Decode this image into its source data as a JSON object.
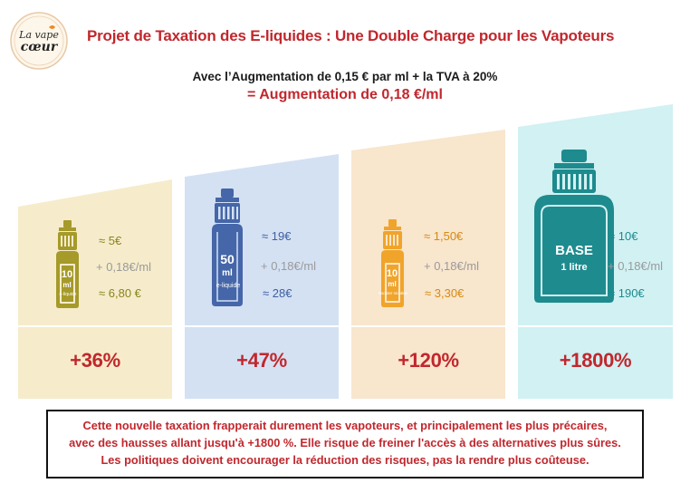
{
  "logo": {
    "line1": "La vape",
    "line2": "cœur"
  },
  "title": "Projet de Taxation des E-liquides : Une Double Charge pour les Vapoteurs",
  "subtitle": "Avec l’Augmentation de 0,15 € par ml + la TVA à 20%",
  "subtitle_highlight": "= Augmentation de 0,18 €/ml",
  "colors": {
    "accent": "#c1272d",
    "yellow": "#f6eccb",
    "blue": "#d4e1f3",
    "orange": "#f8e6cd",
    "cyan": "#d1f1f3"
  },
  "columns": [
    {
      "bottle_line1": "10",
      "bottle_line2": "ml",
      "bottle_line3": "e-liquide",
      "before": "≈ 5€",
      "add": "+ 0,18€/ml",
      "after": "≈ 6,80 €",
      "increase": "+36%"
    },
    {
      "bottle_line1": "50",
      "bottle_line2": "ml",
      "bottle_line3": "e-liquide",
      "before": "≈ 19€",
      "add": "+ 0,18€/ml",
      "after": "≈ 28€",
      "increase": "+47%"
    },
    {
      "bottle_line1": "10",
      "bottle_line2": "ml",
      "bottle_line3": "Booster nicotine",
      "before": "≈ 1,50€",
      "add": "+ 0,18€/ml",
      "after": "≈ 3,30€",
      "increase": "+120%"
    },
    {
      "bottle_line1": "BASE",
      "bottle_line2": "1 litre",
      "bottle_line3": "",
      "before": "≈ 10€",
      "add": "+ 0,18€/ml",
      "after": "≈ 190€",
      "increase": "+1800%"
    }
  ],
  "note": [
    "Cette nouvelle taxation frapperait durement les vapoteurs, et principalement les plus précaires,",
    "avec des hausses allant jusqu'à +1800 %. Elle risque de freiner l'accès à des alternatives plus sûres.",
    "Les politiques doivent encourager la réduction des risques, pas la rendre plus coûteuse."
  ]
}
